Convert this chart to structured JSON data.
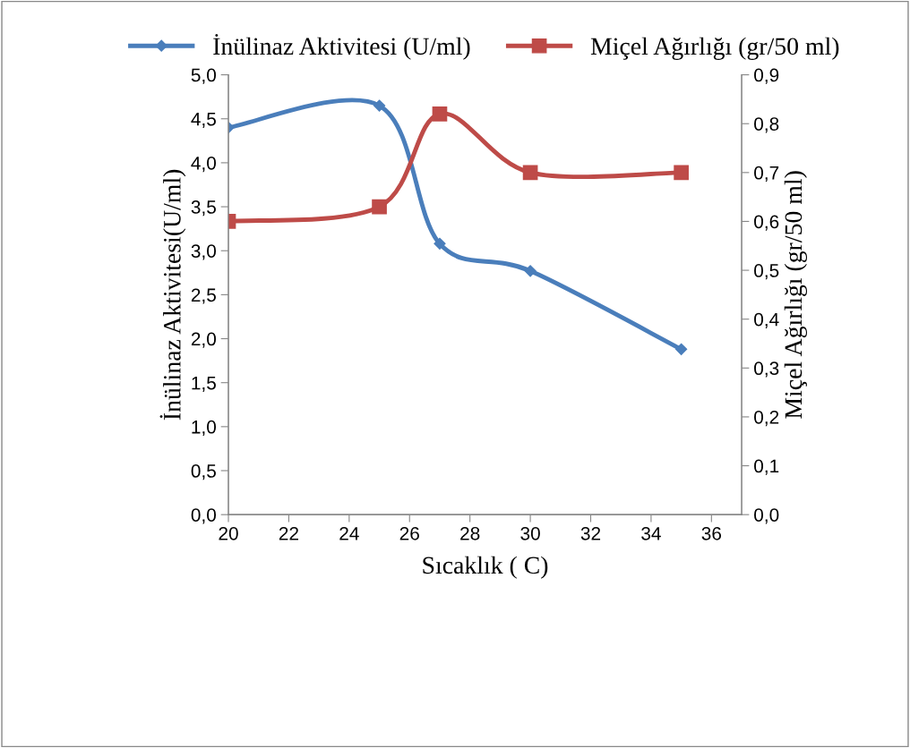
{
  "chart_data": {
    "type": "line",
    "xlabel": "Sıcaklık ( C)",
    "ylabel": "İnülinaz Aktivitesi(U/ml)",
    "y2label": "Miçel Ağırlığı (gr/50 ml)",
    "x": [
      20,
      25,
      27,
      30,
      35
    ],
    "series": [
      {
        "name": "İnülinaz Aktivitesi (U/ml)",
        "color": "#4a7ebb",
        "marker": "diamond",
        "values": [
          4.4,
          4.65,
          3.08,
          2.77,
          1.88
        ]
      },
      {
        "name": "Miçel Ağırlığı (gr/50 ml)",
        "color": "#be4b48",
        "marker": "square",
        "axis": "y2",
        "values": [
          0.6,
          0.63,
          0.82,
          0.7,
          0.7
        ]
      }
    ],
    "xlim": [
      20,
      37
    ],
    "xticks": [
      20,
      22,
      24,
      26,
      28,
      30,
      32,
      34,
      36
    ],
    "ylim": [
      0,
      5
    ],
    "yticks": [
      {
        "value": 0,
        "label": "0,0"
      },
      {
        "value": 0.5,
        "label": "0,5"
      },
      {
        "value": 1,
        "label": "1,0"
      },
      {
        "value": 1.5,
        "label": "1,5"
      },
      {
        "value": 2,
        "label": "2,0"
      },
      {
        "value": 2.5,
        "label": "2,5"
      },
      {
        "value": 3,
        "label": "3,0"
      },
      {
        "value": 3.5,
        "label": "3,5"
      },
      {
        "value": 4,
        "label": "4,0"
      },
      {
        "value": 4.5,
        "label": "4,5"
      },
      {
        "value": 5,
        "label": "5,0"
      }
    ],
    "y2lim": [
      0,
      0.9
    ],
    "y2ticks": [
      {
        "value": 0,
        "label": "0,0"
      },
      {
        "value": 0.1,
        "label": "0,1"
      },
      {
        "value": 0.2,
        "label": "0,2"
      },
      {
        "value": 0.3,
        "label": "0,3"
      },
      {
        "value": 0.4,
        "label": "0,4"
      },
      {
        "value": 0.5,
        "label": "0,5"
      },
      {
        "value": 0.6,
        "label": "0,6"
      },
      {
        "value": 0.7,
        "label": "0,7"
      },
      {
        "value": 0.8,
        "label": "0,8"
      },
      {
        "value": 0.9,
        "label": "0,9"
      }
    ],
    "grid": false,
    "legend": "top",
    "line_style": "solid"
  }
}
